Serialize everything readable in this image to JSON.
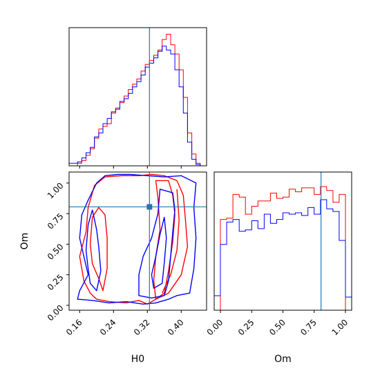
{
  "chart_data": {
    "type": "corner",
    "params": [
      "H0",
      "Om"
    ],
    "truths": {
      "H0": 0.325,
      "Om": 0.805
    },
    "truth_color": "#1f77b4",
    "series": [
      {
        "color": "#ff0000"
      },
      {
        "color": "#0000ff"
      }
    ],
    "panels": [
      {
        "id": "hist_H0",
        "type": "histogram",
        "param": "H0",
        "xlim": [
          0.135,
          0.46
        ],
        "ylim": [
          0,
          1
        ],
        "bin_edges": [
          0.135,
          0.145,
          0.155,
          0.165,
          0.175,
          0.185,
          0.195,
          0.205,
          0.215,
          0.225,
          0.235,
          0.245,
          0.255,
          0.265,
          0.275,
          0.285,
          0.295,
          0.305,
          0.315,
          0.325,
          0.335,
          0.345,
          0.355,
          0.365,
          0.375,
          0.385,
          0.395,
          0.405,
          0.415,
          0.425,
          0.435,
          0.445,
          0.455
        ],
        "series_values": [
          [
            0.0,
            0.0,
            0.02,
            0.04,
            0.08,
            0.13,
            0.21,
            0.28,
            0.3,
            0.32,
            0.4,
            0.44,
            0.48,
            0.53,
            0.58,
            0.62,
            0.66,
            0.72,
            0.77,
            0.8,
            0.84,
            0.88,
            0.96,
            1.0,
            0.92,
            0.85,
            0.73,
            0.52,
            0.25,
            0.09,
            0.02,
            0.0
          ],
          [
            0.02,
            0.02,
            0.03,
            0.06,
            0.1,
            0.14,
            0.22,
            0.25,
            0.32,
            0.36,
            0.41,
            0.43,
            0.49,
            0.51,
            0.55,
            0.6,
            0.64,
            0.69,
            0.75,
            0.78,
            0.82,
            0.87,
            0.91,
            0.88,
            0.85,
            0.73,
            0.6,
            0.4,
            0.18,
            0.05,
            0.01,
            0.0
          ]
        ],
        "xticks": [
          0.16,
          0.24,
          0.32,
          0.4
        ]
      },
      {
        "id": "hist_Om",
        "type": "histogram",
        "param": "Om",
        "xlim": [
          -0.05,
          1.05
        ],
        "ylim": [
          0,
          1
        ],
        "bin_edges": [
          -0.05,
          0.0,
          0.05,
          0.1,
          0.15,
          0.2,
          0.25,
          0.3,
          0.35,
          0.4,
          0.45,
          0.5,
          0.55,
          0.6,
          0.65,
          0.7,
          0.75,
          0.8,
          0.85,
          0.9,
          0.95,
          1.0,
          1.05
        ],
        "series_values": [
          [
            0.0,
            0.69,
            0.7,
            0.88,
            0.86,
            0.73,
            0.79,
            0.83,
            0.83,
            0.89,
            0.85,
            0.86,
            0.92,
            0.9,
            0.93,
            0.93,
            0.88,
            0.94,
            0.91,
            0.82,
            0.88,
            0.0
          ],
          [
            0.11,
            0.5,
            0.67,
            0.69,
            0.6,
            0.61,
            0.68,
            0.62,
            0.73,
            0.66,
            0.69,
            0.74,
            0.73,
            0.74,
            0.72,
            0.78,
            0.73,
            0.84,
            0.77,
            0.75,
            0.53,
            0.1
          ]
        ],
        "xticks": [
          0.0,
          0.25,
          0.5,
          0.75,
          1.0
        ],
        "xlabel": "Om"
      },
      {
        "id": "contour_H0_Om",
        "type": "contour",
        "xparam": "H0",
        "yparam": "Om",
        "xlim": [
          0.135,
          0.46
        ],
        "ylim": [
          -0.04,
          1.09
        ],
        "xticks": [
          0.16,
          0.24,
          0.32,
          0.4
        ],
        "yticks": [
          0.0,
          0.25,
          0.5,
          0.75,
          1.0
        ],
        "xlabel": "H0",
        "ylabel": "Om",
        "contours": [
          {
            "series": 0,
            "points": [
              [
                0.2,
                0.05
              ],
              [
                0.23,
                0.03
              ],
              [
                0.27,
                0.02
              ],
              [
                0.3,
                0.04
              ],
              [
                0.32,
                0.01
              ],
              [
                0.34,
                0.05
              ],
              [
                0.37,
                0.1
              ],
              [
                0.4,
                0.25
              ],
              [
                0.415,
                0.48
              ],
              [
                0.41,
                0.7
              ],
              [
                0.405,
                0.9
              ],
              [
                0.39,
                1.02
              ],
              [
                0.36,
                1.06
              ],
              [
                0.33,
                1.07
              ],
              [
                0.3,
                1.06
              ],
              [
                0.26,
                1.06
              ],
              [
                0.22,
                1.05
              ],
              [
                0.195,
                0.98
              ],
              [
                0.18,
                0.8
              ],
              [
                0.175,
                0.6
              ],
              [
                0.16,
                0.4
              ],
              [
                0.17,
                0.2
              ],
              [
                0.185,
                0.1
              ]
            ],
            "closed": true
          },
          {
            "series": 0,
            "points": [
              [
                0.205,
                0.22
              ],
              [
                0.215,
                0.12
              ],
              [
                0.225,
                0.3
              ],
              [
                0.225,
                0.55
              ],
              [
                0.22,
                0.74
              ],
              [
                0.205,
                0.8
              ],
              [
                0.19,
                0.72
              ],
              [
                0.185,
                0.5
              ],
              [
                0.19,
                0.34
              ]
            ],
            "closed": true
          },
          {
            "series": 0,
            "points": [
              [
                0.34,
                0.05
              ],
              [
                0.36,
                0.1
              ],
              [
                0.37,
                0.28
              ],
              [
                0.38,
                0.52
              ],
              [
                0.385,
                0.74
              ],
              [
                0.38,
                0.9
              ],
              [
                0.37,
                1.02
              ],
              [
                0.34,
                1.02
              ],
              [
                0.345,
                0.88
              ],
              [
                0.35,
                0.62
              ],
              [
                0.34,
                0.4
              ],
              [
                0.335,
                0.2
              ]
            ],
            "closed": true
          },
          {
            "series": 0,
            "points": [
              [
                0.355,
                0.1
              ],
              [
                0.375,
                0.25
              ],
              [
                0.39,
                0.45
              ],
              [
                0.395,
                0.7
              ],
              [
                0.39,
                0.95
              ]
            ],
            "closed": false
          },
          {
            "series": 1,
            "points": [
              [
                0.155,
                0.05
              ],
              [
                0.19,
                0.04
              ],
              [
                0.23,
                0.02
              ],
              [
                0.27,
                0.03
              ],
              [
                0.31,
                0.01
              ],
              [
                0.34,
                0.02
              ],
              [
                0.37,
                0.05
              ],
              [
                0.39,
                0.08
              ],
              [
                0.42,
                0.1
              ],
              [
                0.43,
                0.3
              ],
              [
                0.435,
                0.55
              ],
              [
                0.43,
                0.8
              ],
              [
                0.435,
                1.0
              ],
              [
                0.4,
                1.06
              ],
              [
                0.36,
                1.05
              ],
              [
                0.32,
                1.06
              ],
              [
                0.28,
                1.07
              ],
              [
                0.25,
                1.07
              ],
              [
                0.22,
                1.06
              ],
              [
                0.2,
                1.0
              ],
              [
                0.18,
                0.86
              ],
              [
                0.165,
                0.74
              ],
              [
                0.16,
                0.55
              ],
              [
                0.17,
                0.4
              ],
              [
                0.18,
                0.25
              ],
              [
                0.16,
                0.12
              ]
            ],
            "closed": true
          },
          {
            "series": 1,
            "points": [
              [
                0.185,
                0.18
              ],
              [
                0.2,
                0.12
              ],
              [
                0.21,
                0.28
              ],
              [
                0.205,
                0.48
              ],
              [
                0.2,
                0.62
              ],
              [
                0.19,
                0.78
              ],
              [
                0.18,
                0.66
              ],
              [
                0.175,
                0.45
              ],
              [
                0.18,
                0.3
              ]
            ],
            "closed": true
          },
          {
            "series": 1,
            "points": [
              [
                0.3,
                0.08
              ],
              [
                0.33,
                0.06
              ],
              [
                0.36,
                0.08
              ],
              [
                0.37,
                0.2
              ],
              [
                0.375,
                0.4
              ],
              [
                0.38,
                0.6
              ],
              [
                0.385,
                0.78
              ],
              [
                0.38,
                0.92
              ],
              [
                0.35,
                0.95
              ],
              [
                0.345,
                0.75
              ],
              [
                0.33,
                0.55
              ],
              [
                0.31,
                0.4
              ],
              [
                0.3,
                0.25
              ]
            ],
            "closed": true
          },
          {
            "series": 1,
            "points": [
              [
                0.335,
                0.14
              ],
              [
                0.355,
                0.18
              ],
              [
                0.36,
                0.35
              ],
              [
                0.365,
                0.55
              ],
              [
                0.36,
                0.72
              ],
              [
                0.35,
                0.58
              ],
              [
                0.34,
                0.4
              ],
              [
                0.33,
                0.25
              ]
            ],
            "closed": true
          }
        ]
      }
    ]
  }
}
